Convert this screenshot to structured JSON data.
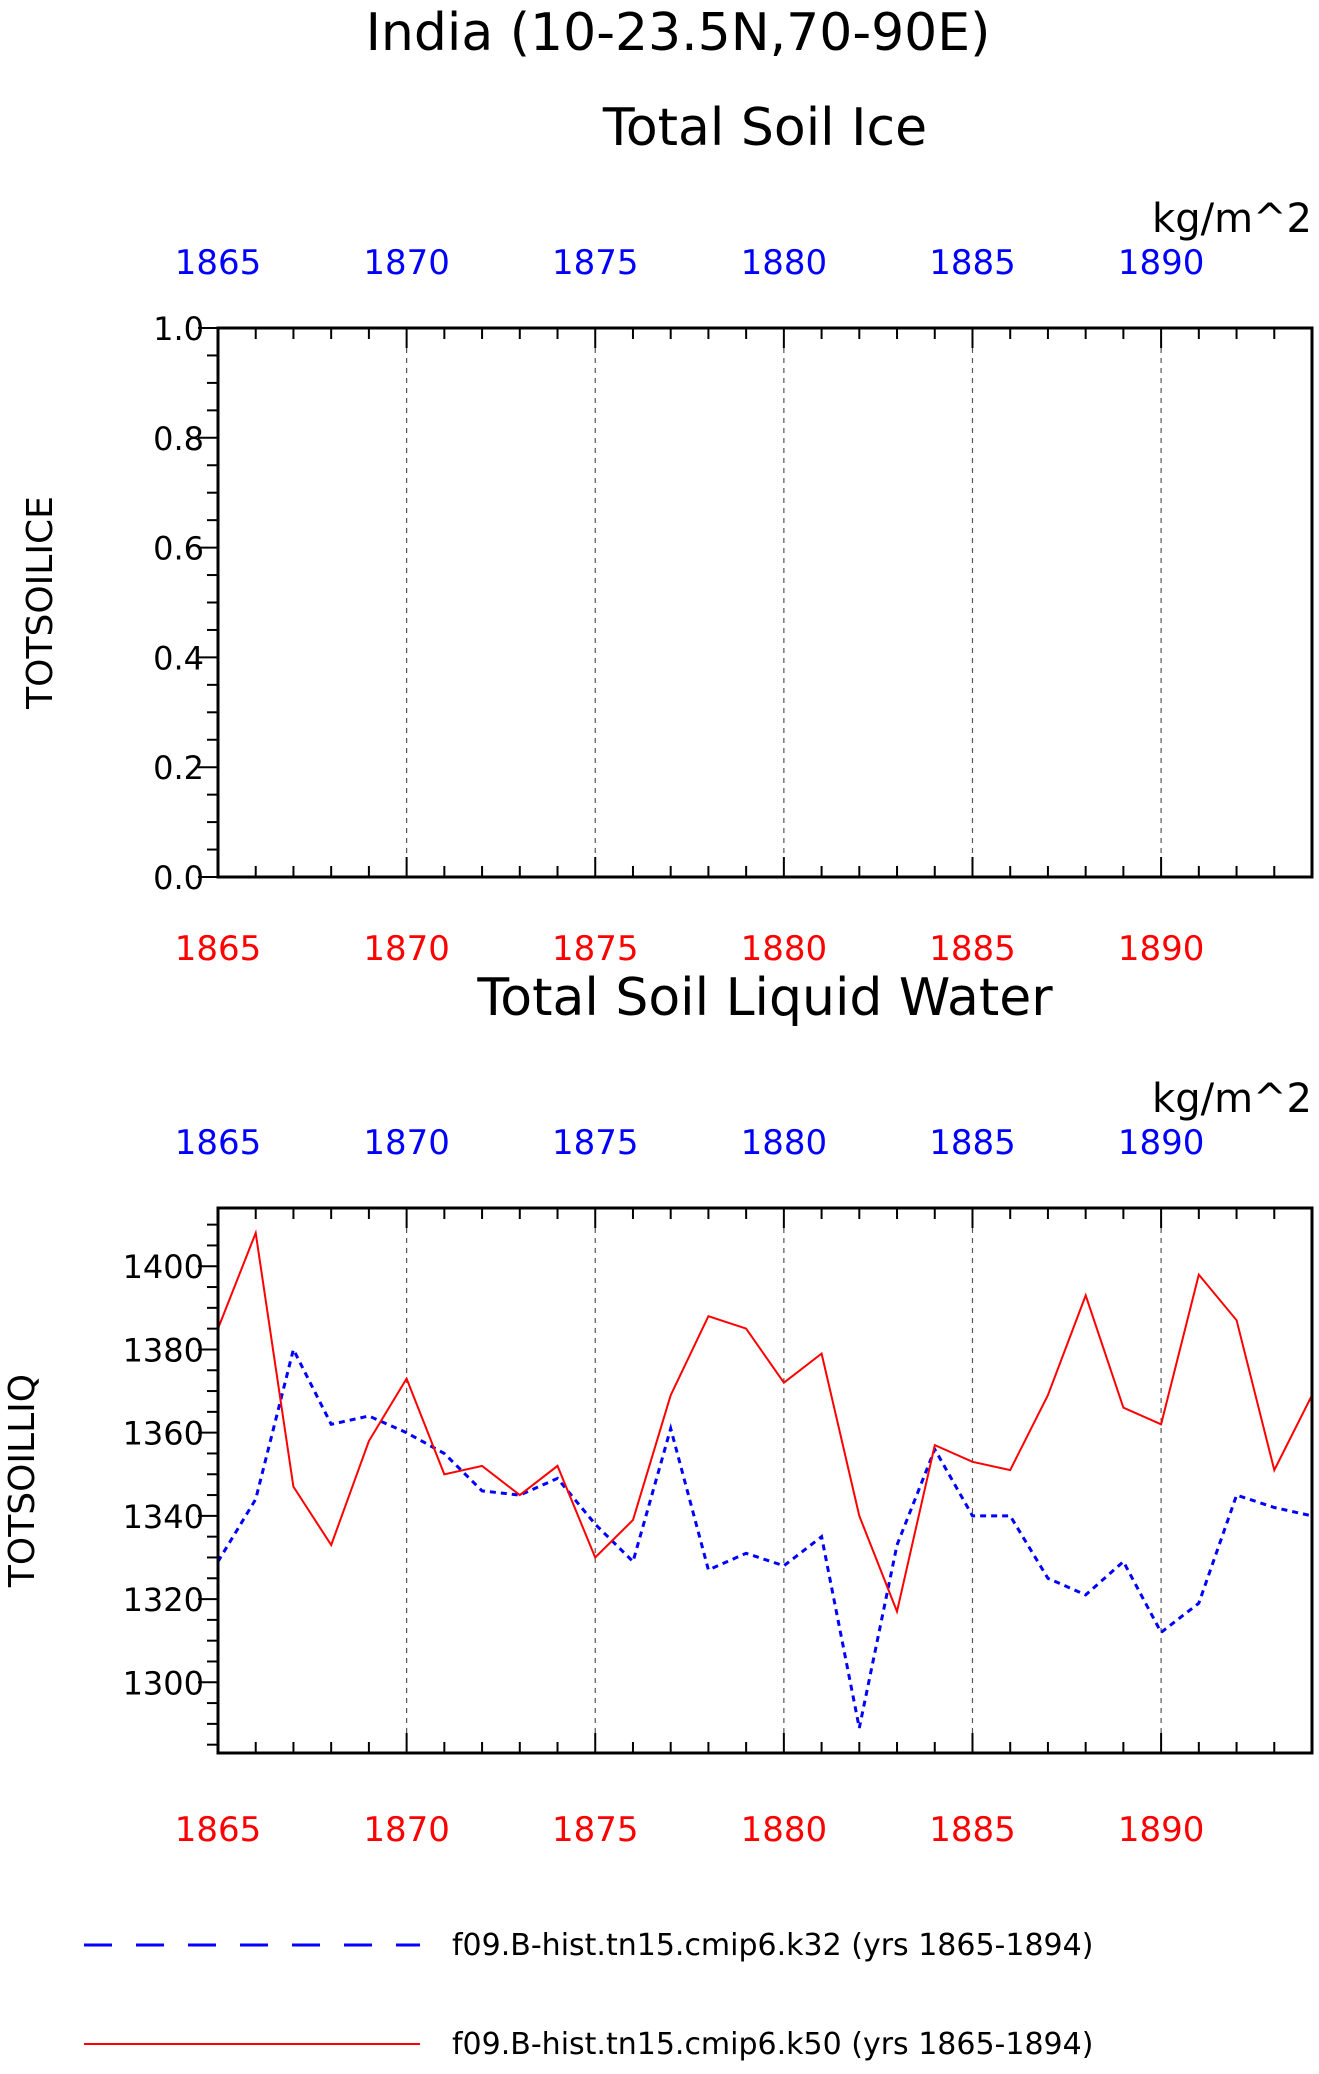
{
  "figure": {
    "title": "India (10-23.5N,70-90E)"
  },
  "chart_data": [
    {
      "type": "line",
      "title": "Total Soil Ice",
      "units": "kg/m^2",
      "ylabel": "TOTSOILICE",
      "xlim": [
        1865,
        1894
      ],
      "ylim": [
        0,
        1
      ],
      "yticks": [
        "0.0",
        "0.2",
        "0.4",
        "0.6",
        "0.8",
        "1.0"
      ],
      "xticks_top": [
        "1865",
        "1870",
        "1875",
        "1880",
        "1885",
        "1890"
      ],
      "xticks_bottom": [
        "1865",
        "1870",
        "1875",
        "1880",
        "1885",
        "1890"
      ],
      "grid": "vertical dashed at major x ticks",
      "top_axis_color": "#0000ff",
      "bottom_axis_color": "#ff0000",
      "series": []
    },
    {
      "type": "line",
      "title": "Total Soil Liquid Water",
      "units": "kg/m^2",
      "ylabel": "TOTSOILLIQ",
      "xlim": [
        1865,
        1894
      ],
      "ylim": [
        1283,
        1414
      ],
      "yticks": [
        "1300",
        "1320",
        "1340",
        "1360",
        "1380",
        "1400"
      ],
      "xticks_top": [
        "1865",
        "1870",
        "1875",
        "1880",
        "1885",
        "1890"
      ],
      "xticks_bottom": [
        "1865",
        "1870",
        "1875",
        "1880",
        "1885",
        "1890"
      ],
      "grid": "vertical dashed at major x ticks",
      "top_axis_color": "#0000ff",
      "bottom_axis_color": "#ff0000",
      "x": [
        1865,
        1866,
        1867,
        1868,
        1869,
        1870,
        1871,
        1872,
        1873,
        1874,
        1875,
        1876,
        1877,
        1878,
        1879,
        1880,
        1881,
        1882,
        1883,
        1884,
        1885,
        1886,
        1887,
        1888,
        1889,
        1890,
        1891,
        1892,
        1893,
        1894
      ],
      "series": [
        {
          "name": "f09.B-hist.tn15.cmip6.k32 (yrs 1865-1894)",
          "color": "#0000ff",
          "style": "dashed",
          "values": [
            1329,
            1344,
            1380,
            1362,
            1364,
            1360,
            1355,
            1346,
            1345,
            1349,
            1338,
            1329,
            1361,
            1327,
            1331,
            1328,
            1335,
            1289,
            1333,
            1356,
            1340,
            1340,
            1325,
            1321,
            1329,
            1312,
            1319,
            1345,
            1342,
            1340
          ]
        },
        {
          "name": "f09.B-hist.tn15.cmip6.k50 (yrs 1865-1894)",
          "color": "#ff0000",
          "style": "solid",
          "values": [
            1385,
            1408,
            1347,
            1333,
            1358,
            1373,
            1350,
            1352,
            1345,
            1352,
            1330,
            1339,
            1369,
            1388,
            1385,
            1372,
            1379,
            1340,
            1317,
            1357,
            1353,
            1351,
            1369,
            1393,
            1366,
            1362,
            1398,
            1387,
            1351,
            1369
          ]
        }
      ]
    }
  ]
}
